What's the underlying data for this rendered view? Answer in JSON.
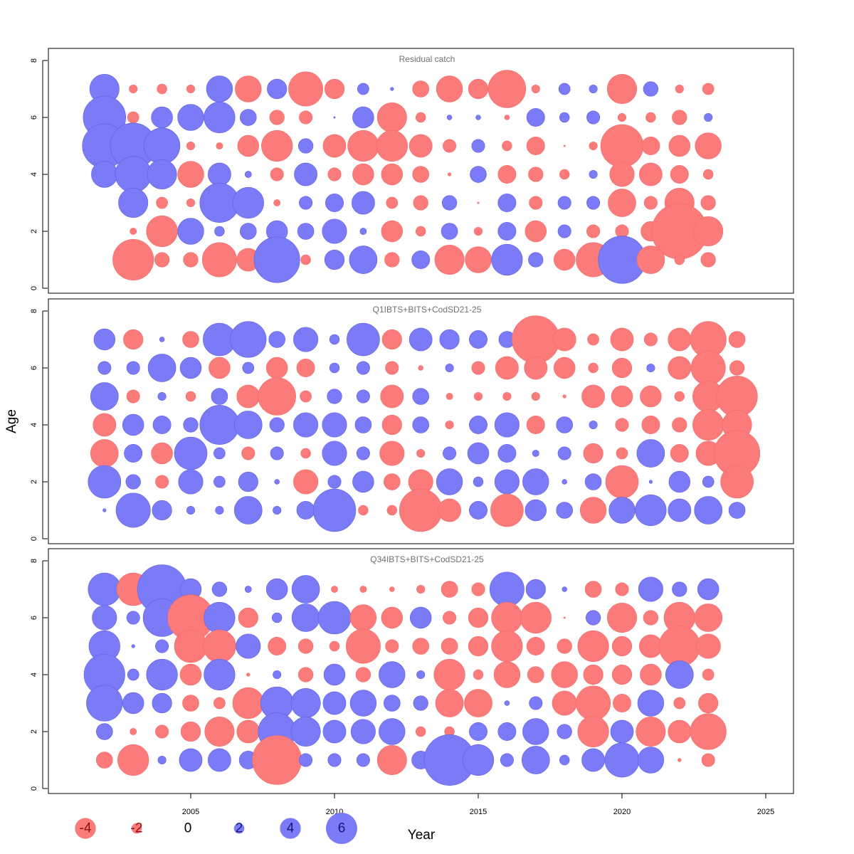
{
  "chart_data": {
    "type": "bubble",
    "xlabel": "Year",
    "ylabel": "Age",
    "colors": {
      "positive": "#7b7bf7",
      "negative": "#fb7b7b"
    },
    "x_ticks": [
      2005,
      2010,
      2015,
      2020,
      2025
    ],
    "y_ticks": [
      0,
      2,
      4,
      6,
      8
    ],
    "xlim": [
      2000.2,
      2026
    ],
    "ylim": [
      -0.3,
      8.3
    ],
    "ages": [
      7,
      6,
      5,
      4,
      3,
      2,
      1
    ],
    "legend": [
      {
        "label": "-4",
        "value": -4
      },
      {
        "label": "-2",
        "value": -2
      },
      {
        "label": "0",
        "value": 0
      },
      {
        "label": "2",
        "value": 2
      },
      {
        "label": "4",
        "value": 4
      },
      {
        "label": "6",
        "value": 6
      }
    ],
    "panels": [
      {
        "title": "Residual catch",
        "years": [
          2002,
          2003,
          2004,
          2005,
          2006,
          2007,
          2008,
          2009,
          2010,
          2011,
          2012,
          2013,
          2014,
          2015,
          2016,
          2017,
          2018,
          2019,
          2020,
          2021,
          2022,
          2023
        ],
        "residuals": [
          [
            1.8,
            -0.5,
            -0.6,
            -0.5,
            1.6,
            -1.6,
            1.2,
            -2.1,
            -1.2,
            0.7,
            0.2,
            -1.0,
            -1.6,
            -1.2,
            -2.3,
            -0.5,
            0.7,
            0.5,
            -1.8,
            0.9,
            -0.5,
            -0.7
          ],
          [
            2.6,
            -0.7,
            1.3,
            1.6,
            1.9,
            1.0,
            -0.9,
            -0.8,
            0.1,
            1.3,
            -1.8,
            -0.6,
            0.3,
            0.3,
            -0.3,
            1.1,
            0.6,
            0.8,
            -0.5,
            -0.6,
            -0.9,
            0.5
          ],
          [
            2.7,
            2.8,
            2.2,
            -0.5,
            -0.4,
            -1.3,
            -1.9,
            0.9,
            -1.4,
            -1.9,
            -1.9,
            -1.4,
            -0.8,
            0.8,
            -0.6,
            -1.1,
            -0.1,
            -0.5,
            -2.6,
            -1.1,
            -1.3,
            -1.6
          ],
          [
            1.6,
            2.2,
            1.8,
            -1.6,
            1.4,
            0.4,
            -0.8,
            1.4,
            -0.8,
            -1.3,
            -1.3,
            -1.0,
            -0.2,
            1.0,
            -1.1,
            -0.9,
            -0.6,
            0.5,
            -1.5,
            -1.4,
            -1.1,
            -0.6
          ],
          [
            null,
            1.8,
            -0.7,
            -0.5,
            2.4,
            1.9,
            -0.4,
            0.8,
            1.1,
            1.4,
            -0.7,
            -0.9,
            0.9,
            -0.1,
            1.1,
            -0.8,
            0.8,
            0.8,
            -1.7,
            -0.8,
            -1.8,
            -0.9
          ],
          [
            null,
            -0.4,
            -1.9,
            1.6,
            0.6,
            1.0,
            1.3,
            1.0,
            1.5,
            0.4,
            -1.3,
            -0.6,
            1.0,
            -0.5,
            1.1,
            -1.3,
            0.8,
            -0.8,
            -0.8,
            -1.2,
            -3.4,
            -1.8
          ],
          [
            null,
            -2.5,
            -0.9,
            -0.9,
            -2.1,
            -1.4,
            2.8,
            -0.6,
            1.2,
            1.7,
            -0.9,
            1.1,
            -1.8,
            -1.6,
            1.9,
            0.9,
            -1.3,
            -2.1,
            2.9,
            -1.7,
            -0.6,
            -0.9
          ]
        ]
      },
      {
        "title": "Q1IBTS+BITS+CodSD21-25",
        "years": [
          2002,
          2003,
          2004,
          2005,
          2006,
          2007,
          2008,
          2009,
          2010,
          2011,
          2012,
          2013,
          2014,
          2015,
          2016,
          2017,
          2018,
          2019,
          2020,
          2021,
          2022,
          2023,
          2024
        ],
        "residuals": [
          [
            1.3,
            -1.2,
            0.3,
            -1.0,
            2.0,
            2.2,
            1.0,
            1.5,
            0.6,
            2.0,
            -1.2,
            1.4,
            1.2,
            1.1,
            1.0,
            -2.9,
            -1.4,
            -0.7,
            -1.4,
            -0.8,
            -1.4,
            -2.2,
            -1.0
          ],
          [
            0.8,
            0.8,
            1.7,
            1.3,
            -1.3,
            0.7,
            -1.3,
            -1.1,
            0.6,
            0.8,
            -0.8,
            -0.3,
            0.5,
            -0.8,
            -1.4,
            -1.4,
            -1.3,
            -0.6,
            -1.2,
            0.5,
            -1.4,
            -2.1,
            -0.9
          ],
          [
            1.7,
            -0.8,
            0.5,
            -0.6,
            1.0,
            -1.4,
            -2.3,
            -0.7,
            0.9,
            0.8,
            -1.4,
            1.0,
            -0.4,
            -0.5,
            -0.5,
            -0.5,
            -0.2,
            -1.4,
            -1.3,
            -1.3,
            -0.6,
            -1.9,
            -2.5
          ],
          [
            -1.4,
            1.3,
            1.1,
            0.9,
            2.4,
            1.7,
            0.9,
            1.5,
            1.5,
            1.0,
            -1.2,
            1.0,
            -0.5,
            1.1,
            1.5,
            -1.1,
            1.0,
            0.5,
            -0.8,
            -1.1,
            -0.9,
            -1.9,
            -1.8
          ],
          [
            -1.7,
            1.1,
            -1.3,
            2.0,
            0.7,
            -0.8,
            0.8,
            -0.6,
            1.5,
            0.8,
            -1.5,
            -0.5,
            0.8,
            1.3,
            1.1,
            0.4,
            0.8,
            -1.2,
            -0.7,
            1.7,
            -1.1,
            -1.5,
            -2.8
          ],
          [
            2.0,
            0.9,
            -0.8,
            1.5,
            0.7,
            1.2,
            0.3,
            -1.5,
            0.8,
            1.3,
            -1.0,
            -1.5,
            1.6,
            0.6,
            1.5,
            1.6,
            0.3,
            1.0,
            -2.0,
            0.2,
            1.3,
            0.7,
            -2.0
          ],
          [
            0.2,
            2.1,
            1.2,
            0.5,
            0.5,
            1.7,
            0.5,
            1.1,
            2.6,
            -0.6,
            -0.6,
            -2.6,
            -1.4,
            1.1,
            -2.0,
            1.3,
            1.0,
            -1.6,
            1.6,
            1.9,
            1.4,
            1.7,
            1.0
          ]
        ]
      },
      {
        "title": "Q34IBTS+BITS+CodSD21-25",
        "years": [
          2002,
          2003,
          2004,
          2005,
          2006,
          2007,
          2008,
          2009,
          2010,
          2011,
          2012,
          2013,
          2014,
          2015,
          2016,
          2017,
          2018,
          2019,
          2020,
          2021,
          2022,
          2023
        ],
        "residuals": [
          [
            2.0,
            -2.0,
            3.0,
            1.3,
            0.9,
            0.4,
            1.3,
            1.7,
            -0.4,
            -0.4,
            -0.3,
            -0.5,
            -1.0,
            -0.8,
            2.1,
            1.2,
            0.3,
            -1.0,
            -0.8,
            1.5,
            0.9,
            1.3
          ],
          [
            1.5,
            0.8,
            2.3,
            -2.8,
            1.9,
            -1.2,
            0.6,
            1.7,
            2.0,
            -1.6,
            -1.3,
            1.3,
            -0.8,
            -1.2,
            -1.9,
            -1.9,
            -0.1,
            0.9,
            -1.8,
            -0.9,
            -1.9,
            -1.7
          ],
          [
            1.9,
            0.2,
            0.8,
            -2.0,
            -2.0,
            1.5,
            -1.1,
            -0.9,
            -0.6,
            -2.1,
            -0.8,
            -1.0,
            -1.0,
            -1.2,
            -1.9,
            -1.1,
            -0.9,
            -1.9,
            -1.2,
            -1.4,
            -2.5,
            -1.5
          ],
          [
            2.5,
            0.7,
            1.9,
            -1.3,
            1.9,
            -0.2,
            0.5,
            -0.9,
            1.3,
            -0.9,
            1.6,
            0.5,
            -1.9,
            -0.6,
            -1.6,
            -1.0,
            -1.6,
            -1.2,
            -1.2,
            -1.3,
            1.7,
            -0.7
          ],
          [
            2.2,
            1.3,
            1.2,
            -1.0,
            -0.7,
            -1.9,
            2.0,
            1.8,
            1.4,
            1.6,
            1.0,
            0.9,
            -1.7,
            -1.7,
            0.3,
            0.8,
            -1.5,
            -2.1,
            -1.1,
            1.6,
            -0.7,
            -1.2
          ],
          [
            1.0,
            -0.4,
            -0.8,
            -1.2,
            -1.8,
            -1.4,
            2.3,
            1.8,
            1.4,
            1.5,
            1.6,
            -0.6,
            -0.6,
            1.1,
            1.1,
            1.6,
            0.9,
            -1.9,
            1.4,
            -1.8,
            -1.4,
            -2.2
          ],
          [
            -1.0,
            -1.9,
            0.5,
            1.4,
            1.4,
            1.1,
            -3.0,
            0.8,
            0.8,
            0.8,
            -1.8,
            1.1,
            3.1,
            1.9,
            0.8,
            1.7,
            0.6,
            1.4,
            2.1,
            1.6,
            -0.2,
            -0.8
          ]
        ]
      }
    ]
  }
}
